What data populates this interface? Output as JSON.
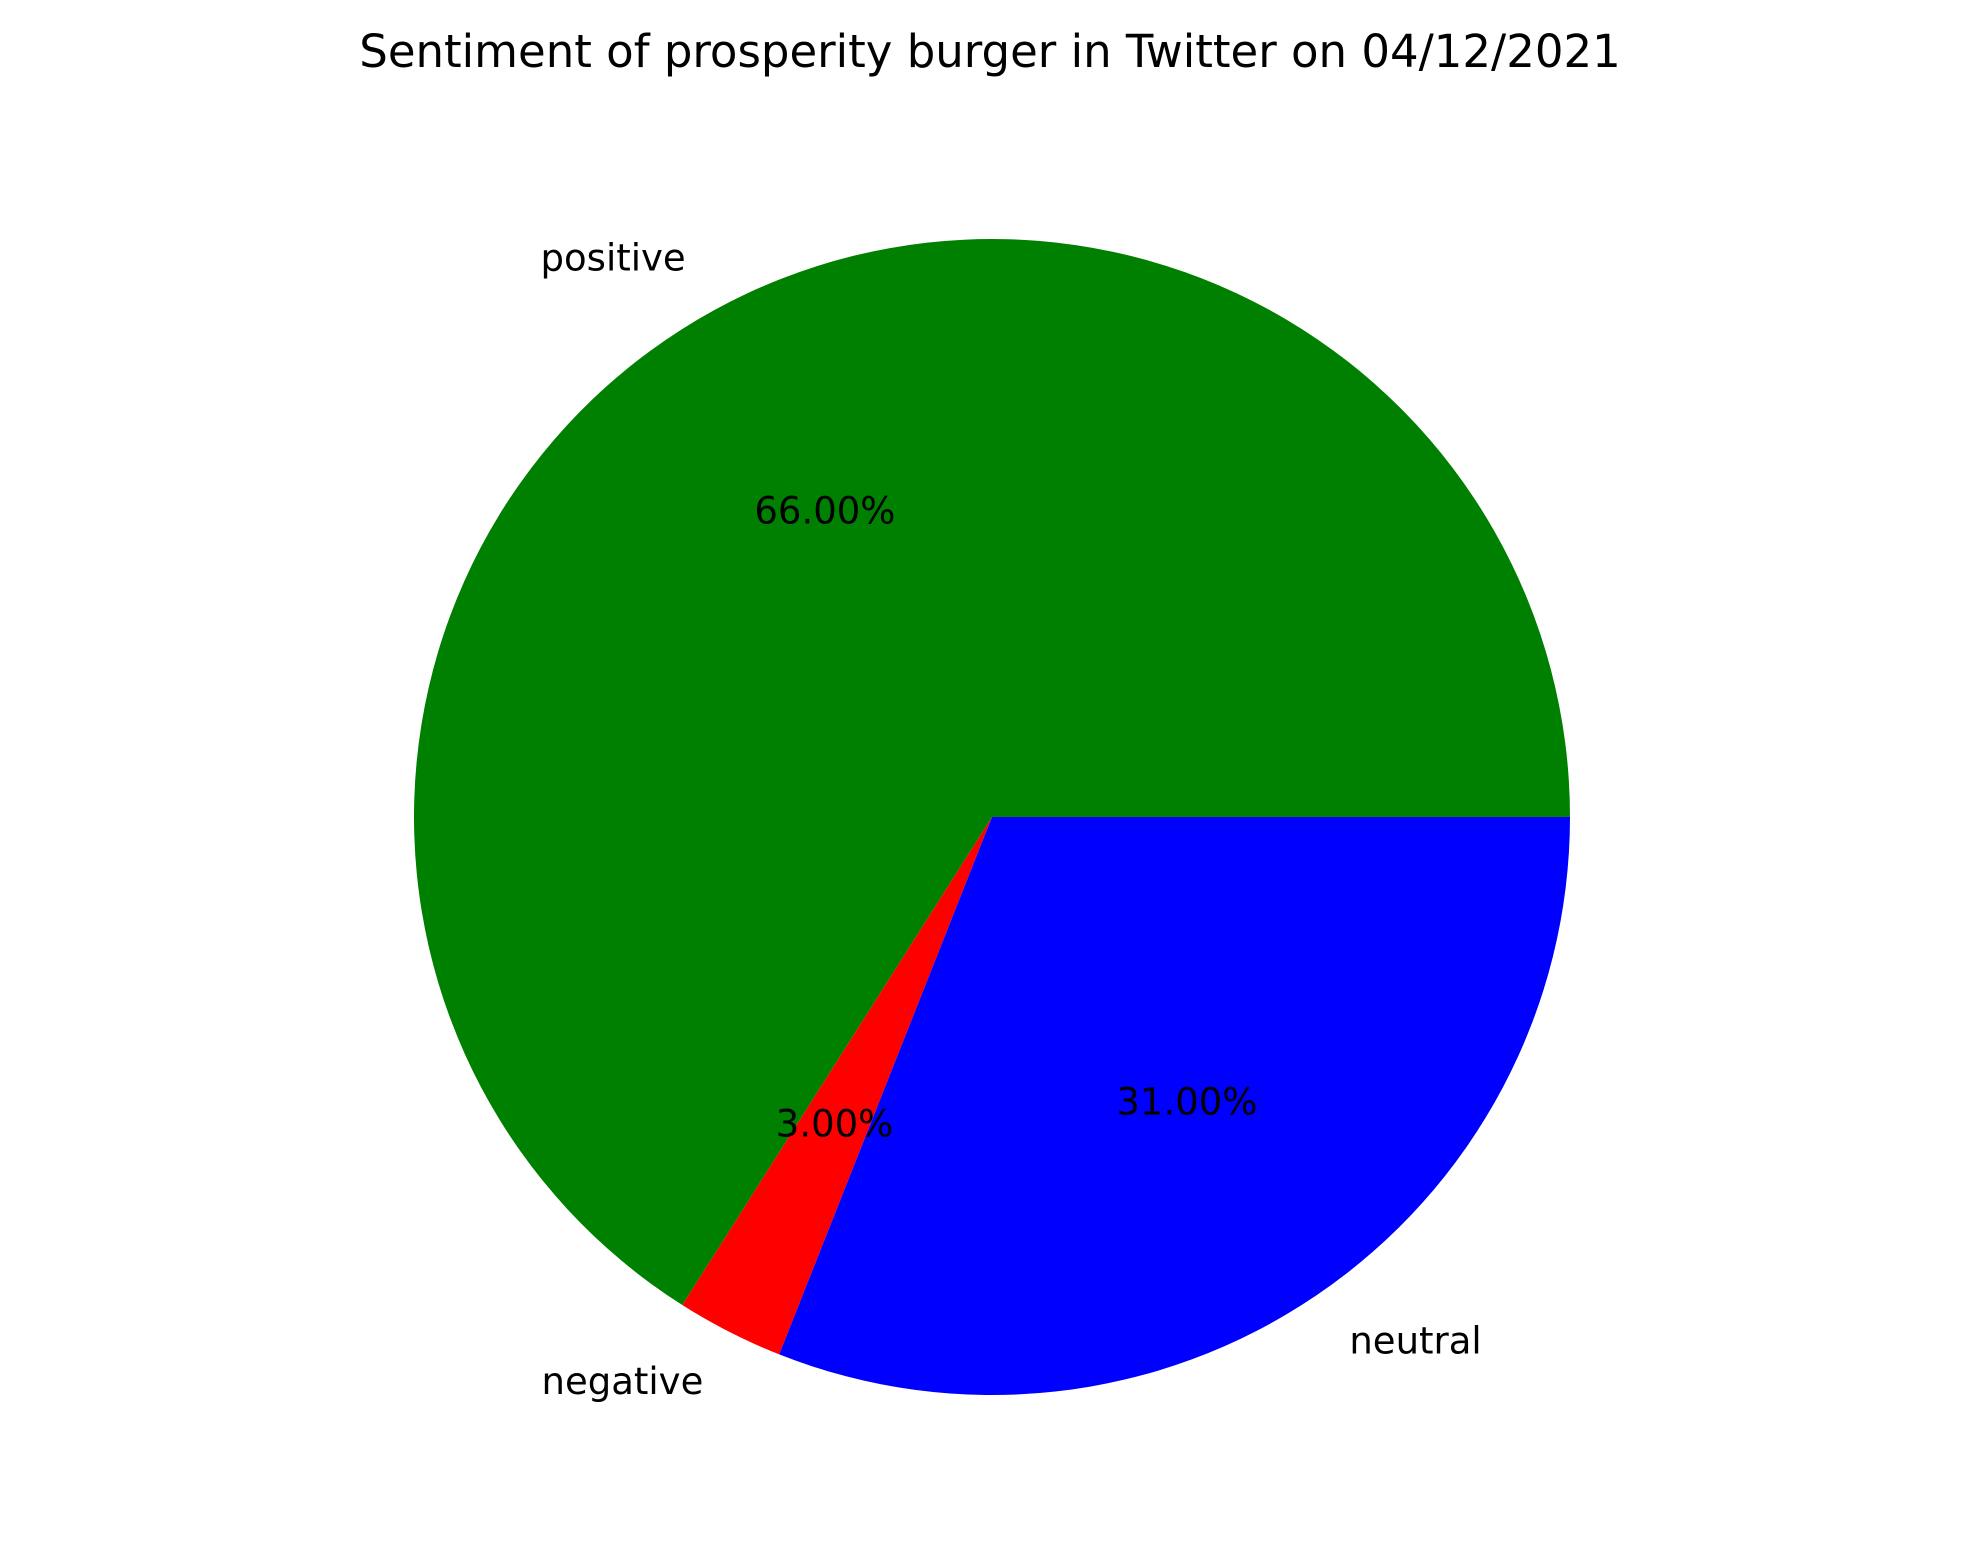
{
  "chart_data": {
    "type": "pie",
    "title": "Sentiment of prosperity burger in Twitter on 04/12/2021",
    "slices": [
      {
        "label": "positive",
        "value": 66.0,
        "pct_label": "66.00%",
        "color": "#008000"
      },
      {
        "label": "negative",
        "value": 3.0,
        "pct_label": "3.00%",
        "color": "#ff0000"
      },
      {
        "label": "neutral",
        "value": 31.0,
        "pct_label": "31.00%",
        "color": "#0000ff"
      }
    ],
    "start_angle_deg": 0,
    "direction": "counterclockwise",
    "legend": "none"
  }
}
